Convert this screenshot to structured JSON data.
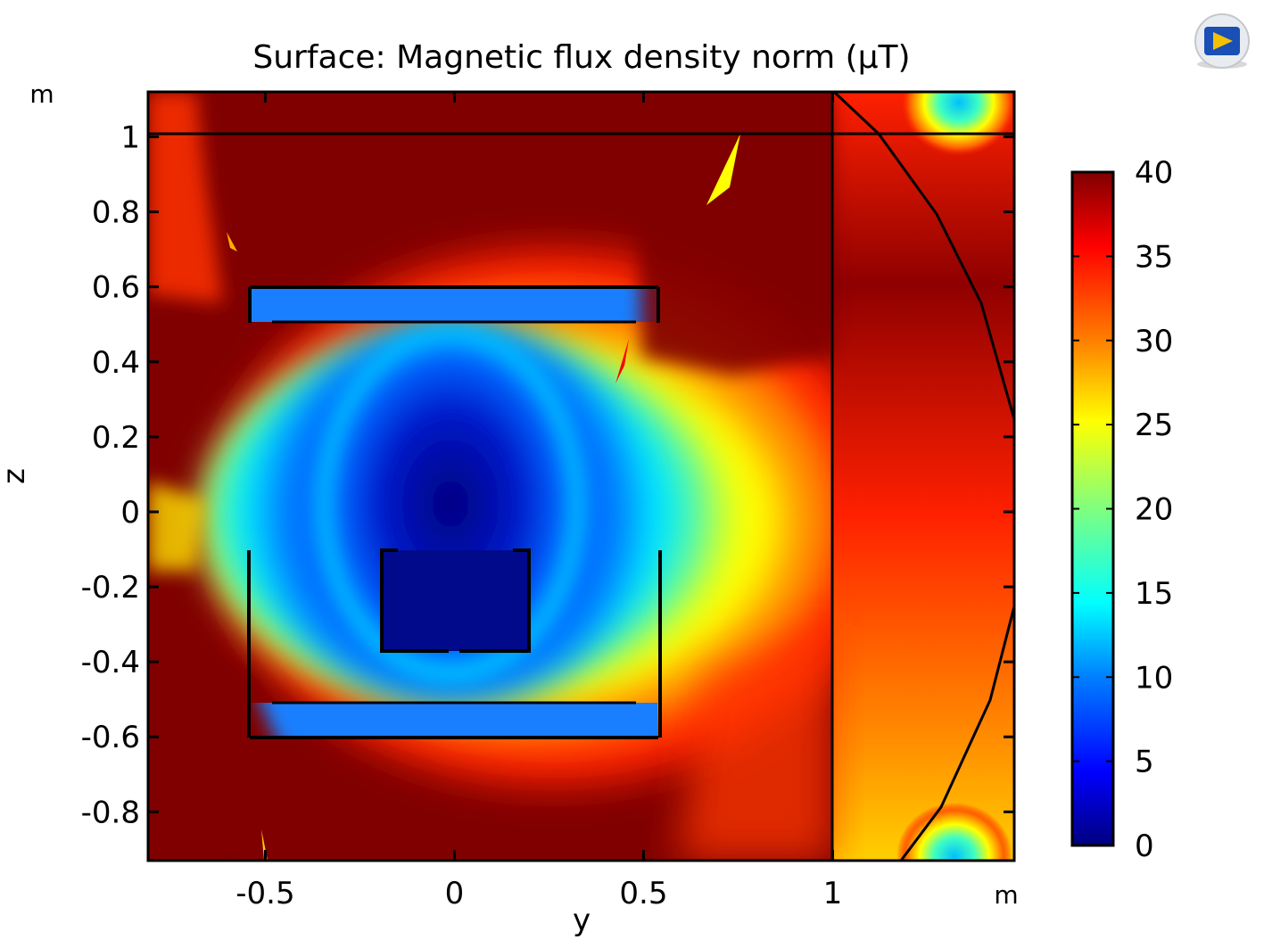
{
  "chart_data": {
    "type": "heatmap",
    "title": "Surface: Magnetic flux density norm (µT)",
    "xlabel": "y",
    "ylabel": "z",
    "x_unit": "m",
    "y_unit": "m",
    "xlim": [
      -0.81,
      1.48
    ],
    "ylim": [
      -0.93,
      1.12
    ],
    "x_ticks": [
      -0.5,
      0,
      0.5,
      1
    ],
    "x_tick_labels": [
      "-0.5",
      "0",
      "0.5",
      "1"
    ],
    "y_ticks": [
      -0.8,
      -0.6,
      -0.4,
      -0.2,
      0,
      0.2,
      0.4,
      0.6,
      0.8,
      1
    ],
    "y_tick_labels": [
      "-0.8",
      "-0.6",
      "-0.4",
      "-0.2",
      "0",
      "0.2",
      "0.4",
      "0.6",
      "0.8",
      "1"
    ],
    "colorbar": {
      "min": 0,
      "max": 40,
      "ticks": [
        0,
        5,
        10,
        15,
        20,
        25,
        30,
        35,
        40
      ],
      "tick_labels": [
        "0",
        "5",
        "10",
        "15",
        "20",
        "25",
        "30",
        "35",
        "40"
      ],
      "colormap": "jet"
    },
    "grid": false,
    "approximate_field_regions": [
      {
        "region": "inner box",
        "value_range": [
          0,
          5
        ]
      },
      {
        "region": "inside coil between plates",
        "value_range": [
          3,
          12
        ]
      },
      {
        "region": "top and bottom plates",
        "value_range": [
          8,
          10
        ]
      },
      {
        "region": "flanks of coil",
        "value_range": [
          15,
          28
        ]
      },
      {
        "region": "outer corners and far field",
        "value_range": [
          38,
          40
        ]
      },
      {
        "region": "right strip beyond y=1",
        "value_range": [
          30,
          40
        ]
      }
    ]
  },
  "colors": {
    "frame": "#000000",
    "jet_stops": [
      "#00007f",
      "#0000ff",
      "#007fff",
      "#00ffff",
      "#7fff7f",
      "#ffff00",
      "#ff7f00",
      "#ff0000",
      "#7f0000"
    ]
  },
  "icons": {
    "corner_logo": "comsol-logo-icon"
  }
}
